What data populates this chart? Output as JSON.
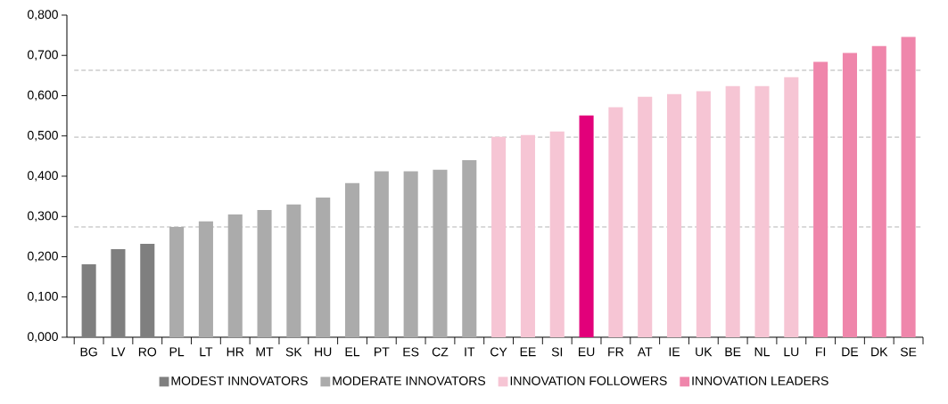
{
  "chart_data": {
    "type": "bar",
    "categories": [
      "BG",
      "LV",
      "RO",
      "PL",
      "LT",
      "HR",
      "MT",
      "SK",
      "HU",
      "EL",
      "PT",
      "ES",
      "CZ",
      "IT",
      "CY",
      "EE",
      "SI",
      "EU",
      "FR",
      "AT",
      "IE",
      "UK",
      "BE",
      "NL",
      "LU",
      "FI",
      "DE",
      "DK",
      "SE"
    ],
    "series": [
      {
        "name": "MODEST INNOVATORS",
        "color": "#7f7f7f",
        "values": [
          0.181,
          0.219,
          0.232,
          null,
          null,
          null,
          null,
          null,
          null,
          null,
          null,
          null,
          null,
          null,
          null,
          null,
          null,
          null,
          null,
          null,
          null,
          null,
          null,
          null,
          null,
          null,
          null,
          null,
          null
        ]
      },
      {
        "name": "MODERATE INNOVATORS",
        "color": "#ababab",
        "values": [
          null,
          null,
          null,
          0.274,
          0.288,
          0.305,
          0.316,
          0.33,
          0.347,
          0.383,
          0.412,
          0.412,
          0.416,
          0.44,
          null,
          null,
          null,
          null,
          null,
          null,
          null,
          null,
          null,
          null,
          null,
          null,
          null,
          null,
          null
        ]
      },
      {
        "name": "INNOVATION FOLLOWERS",
        "color": "#f6c5d4",
        "values": [
          null,
          null,
          null,
          null,
          null,
          null,
          null,
          null,
          null,
          null,
          null,
          null,
          null,
          null,
          0.498,
          0.502,
          0.511,
          null,
          0.571,
          0.597,
          0.604,
          0.611,
          0.624,
          0.624,
          0.646,
          null,
          null,
          null,
          null
        ]
      },
      {
        "name": "INNOVATION LEADERS",
        "color": "#ef86ab",
        "values": [
          null,
          null,
          null,
          null,
          null,
          null,
          null,
          null,
          null,
          null,
          null,
          null,
          null,
          null,
          null,
          null,
          null,
          null,
          null,
          null,
          null,
          null,
          null,
          null,
          null,
          0.684,
          0.706,
          0.723,
          0.746
        ]
      },
      {
        "color": "#e2007a",
        "values": [
          null,
          null,
          null,
          null,
          null,
          null,
          null,
          null,
          null,
          null,
          null,
          null,
          null,
          null,
          null,
          null,
          null,
          0.551,
          null,
          null,
          null,
          null,
          null,
          null,
          null,
          null,
          null,
          null,
          null
        ]
      }
    ],
    "ylim": [
      0,
      0.8
    ],
    "yticks": [
      {
        "value": 0,
        "label": "0,000"
      },
      {
        "value": 0.1,
        "label": "0,100"
      },
      {
        "value": 0.2,
        "label": "0,200"
      },
      {
        "value": 0.3,
        "label": "0,300"
      },
      {
        "value": 0.4,
        "label": "0,400"
      },
      {
        "value": 0.5,
        "label": "0,500"
      },
      {
        "value": 0.6,
        "label": "0,600"
      },
      {
        "value": 0.7,
        "label": "0,700"
      },
      {
        "value": 0.8,
        "label": "0,800"
      }
    ],
    "ref_lines": [
      {
        "axis": "y",
        "value": 0.663,
        "color": "#b3b3b3",
        "line_style": "dashed"
      },
      {
        "axis": "y",
        "value": 0.497,
        "color": "#b3b3b3",
        "line_style": "dashed"
      },
      {
        "axis": "y",
        "value": 0.274,
        "color": "#b3b3b3",
        "line_style": "dashed"
      }
    ],
    "grid": false,
    "legend": "bottom"
  }
}
